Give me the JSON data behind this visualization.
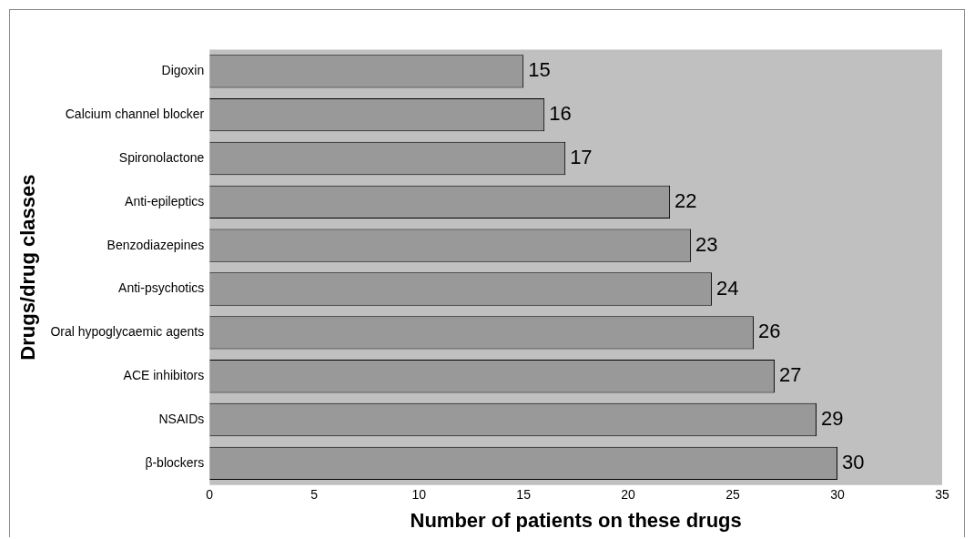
{
  "chart_data": {
    "type": "bar",
    "orientation": "horizontal",
    "xlabel": "Number of patients on these drugs",
    "ylabel": "Drugs/drug classes",
    "categories": [
      "Digoxin",
      "Calcium channel blocker",
      "Spironolactone",
      "Anti-epileptics",
      "Benzodiazepines",
      "Anti-psychotics",
      "Oral hypoglycaemic agents",
      "ACE inhibitors",
      "NSAIDs",
      "β-blockers"
    ],
    "values": [
      15,
      16,
      17,
      22,
      23,
      24,
      26,
      27,
      29,
      30
    ],
    "color": "#999999",
    "xlim": [
      0,
      35
    ],
    "xticks": [
      0,
      5,
      10,
      15,
      20,
      25,
      30,
      35
    ],
    "data_labels": true,
    "grid": false,
    "legend": false
  }
}
